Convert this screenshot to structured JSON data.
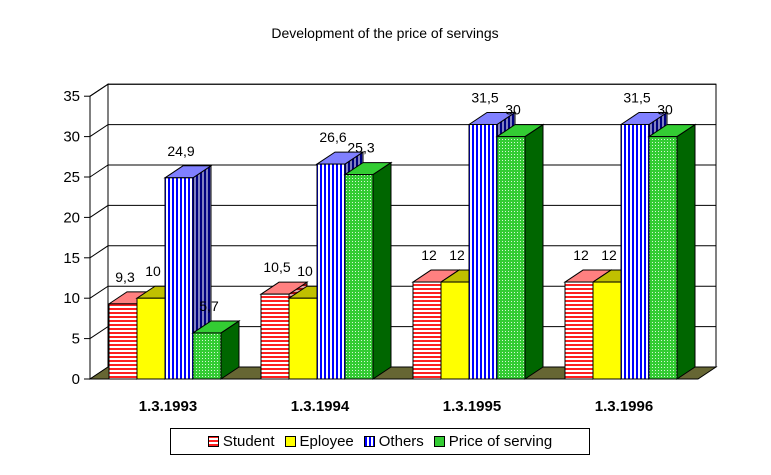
{
  "chart_data": {
    "type": "bar",
    "title": "Development of the price of servings",
    "categories": [
      "1.3.1993",
      "1.3.1994",
      "1.3.1995",
      "1.3.1996"
    ],
    "series": [
      {
        "name": "Student",
        "values": [
          9.3,
          10.5,
          12,
          12
        ],
        "labels": [
          "9,3",
          "10,5",
          "12",
          "12"
        ],
        "color": "#ff3333",
        "pattern": "horizontal-stripes"
      },
      {
        "name": "Eployee",
        "values": [
          10,
          10,
          12,
          12
        ],
        "labels": [
          "10",
          "10",
          "12",
          "12"
        ],
        "color": "#ffff00",
        "pattern": "solid"
      },
      {
        "name": "Others",
        "values": [
          24.9,
          26.6,
          31.5,
          31.5
        ],
        "labels": [
          "24,9",
          "26,6",
          "31,5",
          "31,5"
        ],
        "color": "#0000ff",
        "pattern": "vertical-stripes"
      },
      {
        "name": "Price of serving",
        "values": [
          5.7,
          25.3,
          30,
          30
        ],
        "labels": [
          "5,7",
          "25,3",
          "30",
          "30"
        ],
        "color": "#33cc33",
        "pattern": "dotted"
      }
    ],
    "ylim": [
      0,
      35
    ],
    "yticks": [
      "0",
      "5",
      "10",
      "15",
      "20",
      "25",
      "30",
      "35"
    ],
    "xlabel": "",
    "ylabel": "",
    "grid": true,
    "legend_position": "bottom"
  }
}
